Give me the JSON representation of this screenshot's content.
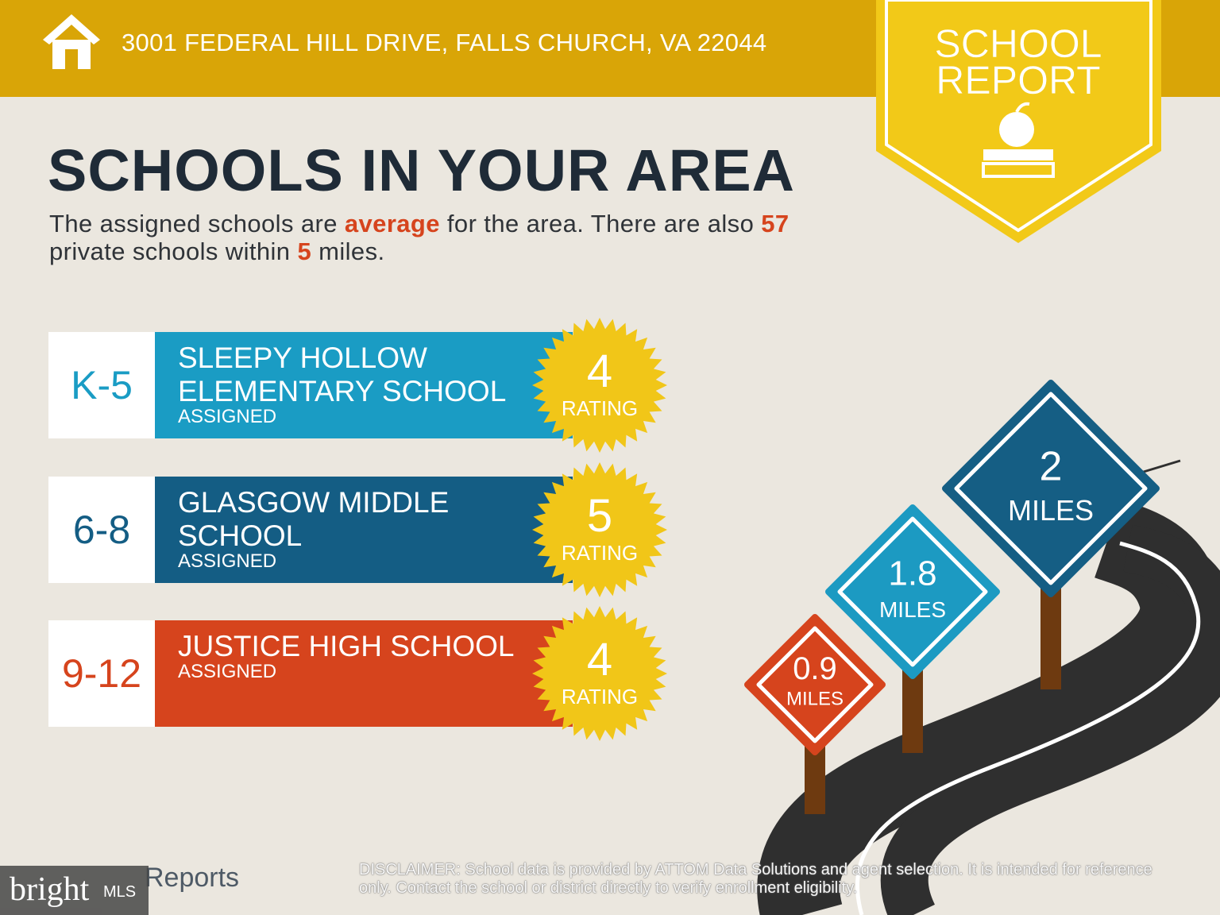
{
  "header": {
    "address": "3001 FEDERAL HILL DRIVE, FALLS CHURCH, VA 22044"
  },
  "badge": {
    "lines": [
      "SCHOOL",
      "REPORT"
    ]
  },
  "title": "SCHOOLS IN YOUR AREA",
  "summary": {
    "before": "The assigned schools are",
    "quality": "average",
    "middle": "for the area. There are also",
    "private_count": 57,
    "within": "private schools within",
    "radius": 5,
    "after": "miles."
  },
  "schools": [
    {
      "grade": "K-5",
      "name_lines": [
        "SLEEPY HOLLOW",
        "ELEMENTARY SCHOOL"
      ],
      "status": "ASSIGNED",
      "rating": 4,
      "rating_label": "RATING",
      "color": "#1a9cc4"
    },
    {
      "grade": "6-8",
      "name_lines": [
        "GLASGOW MIDDLE",
        "SCHOOL"
      ],
      "status": "ASSIGNED",
      "rating": 5,
      "rating_label": "RATING",
      "color": "#145d84"
    },
    {
      "grade": "9-12",
      "name_lines": [
        "JUSTICE HIGH SCHOOL"
      ],
      "status": "ASSIGNED",
      "rating": 4,
      "rating_label": "RATING",
      "color": "#d6441d"
    }
  ],
  "distances": [
    {
      "value": 0.9,
      "unit": "MILES",
      "color": "#d6441d"
    },
    {
      "value": 1.8,
      "unit": "MILES",
      "color": "#1c9ac2"
    },
    {
      "value": 2,
      "unit": "MILES",
      "color": "#155e84"
    }
  ],
  "footer": {
    "brand": "Reports",
    "watermark": {
      "name": "bright",
      "suffix": "MLS"
    },
    "disclaimer": {
      "label": "DISCLAIMER:",
      "text": "School data is provided by ATTOM Data Solutions and agent selection. It is intended for reference only. Contact the school or district directly to verify enrollment eligibility."
    }
  }
}
